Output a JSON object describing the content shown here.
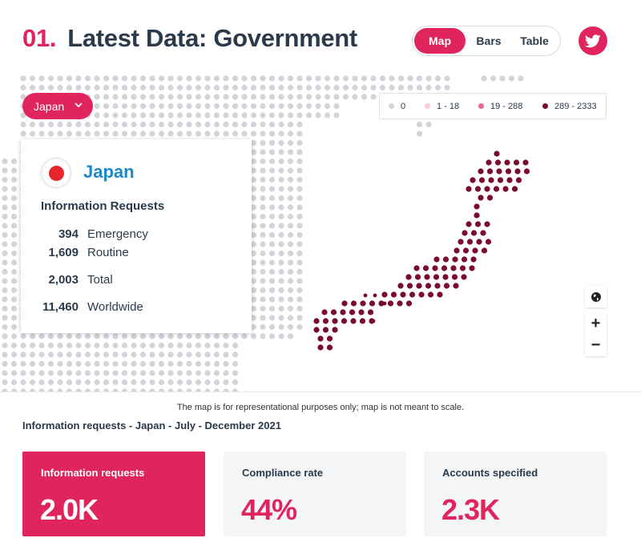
{
  "header": {
    "number": "01.",
    "title": "Latest Data: Government",
    "view_options": [
      {
        "label": "Map",
        "active": true
      },
      {
        "label": "Bars",
        "active": false
      },
      {
        "label": "Table",
        "active": false
      }
    ],
    "share_icon": "twitter-icon"
  },
  "map": {
    "country_select": {
      "value": "Japan"
    },
    "legend": [
      {
        "label": "0",
        "color": "#d1d5da"
      },
      {
        "label": "1 - 18",
        "color": "#f9c9d9"
      },
      {
        "label": "19 - 288",
        "color": "#e9678f"
      },
      {
        "label": "289 - 2333",
        "color": "#7a0a2e"
      }
    ],
    "highlight_color": "#7a0a2e",
    "background_dot_color": "#d1d5da",
    "controls": [
      {
        "name": "globe-icon",
        "glyph": "🌐"
      },
      {
        "name": "zoom-in-icon",
        "glyph": "+"
      },
      {
        "name": "zoom-out-icon",
        "glyph": "−"
      }
    ]
  },
  "info_card": {
    "country": "Japan",
    "heading": "Information Requests",
    "stats": [
      {
        "value": "394",
        "label": "Emergency"
      },
      {
        "value": "1,609",
        "label": "Routine"
      },
      {
        "value": "2,003",
        "label": "Total"
      },
      {
        "value": "11,460",
        "label": "Worldwide"
      }
    ]
  },
  "disclaimer": "The map is for representational purposes only; map is not meant to scale.",
  "section_label": "Information requests - Japan - July - December 2021",
  "stat_cards": [
    {
      "label": "Information requests",
      "value": "2.0K",
      "highlight": true
    },
    {
      "label": "Compliance rate",
      "value": "44%",
      "highlight": false
    },
    {
      "label": "Accounts specified",
      "value": "2.3K",
      "highlight": false
    }
  ],
  "accent_color": "#e0245e"
}
